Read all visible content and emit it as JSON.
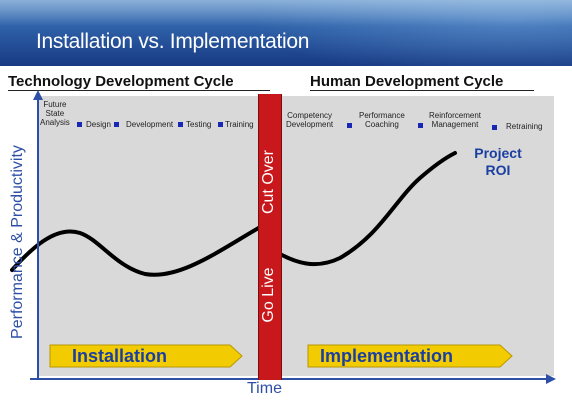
{
  "slide": {
    "title": "Installation vs. Implementation"
  },
  "cycles": {
    "left_title": "Technology Development Cycle",
    "right_title": "Human Development Cycle"
  },
  "phases_left": [
    {
      "label": "Future\nState\nAnalysis"
    },
    {
      "label": "Design"
    },
    {
      "label": "Development"
    },
    {
      "label": "Testing"
    },
    {
      "label": "Training"
    }
  ],
  "phases_right": [
    {
      "label": "Competency\nDevelopment"
    },
    {
      "label": "Performance\nCoaching"
    },
    {
      "label": "Reinforcement\nManagement"
    },
    {
      "label": "Retraining"
    }
  ],
  "cutover": {
    "top_text": "Cut Over",
    "bottom_text": "Go Live"
  },
  "curve_end_label": "Project\nROI",
  "axes": {
    "y_label": "Performance & Productivity",
    "x_label": "Time"
  },
  "arrows": {
    "left": "Installation",
    "right": "Implementation"
  },
  "colors": {
    "header": "#2d5ea6",
    "cutover_bar": "#c8181b",
    "arrow_fill": "#f2cc00",
    "accent_blue": "#1b3fa1",
    "plot_bg": "#d9d9d9"
  }
}
